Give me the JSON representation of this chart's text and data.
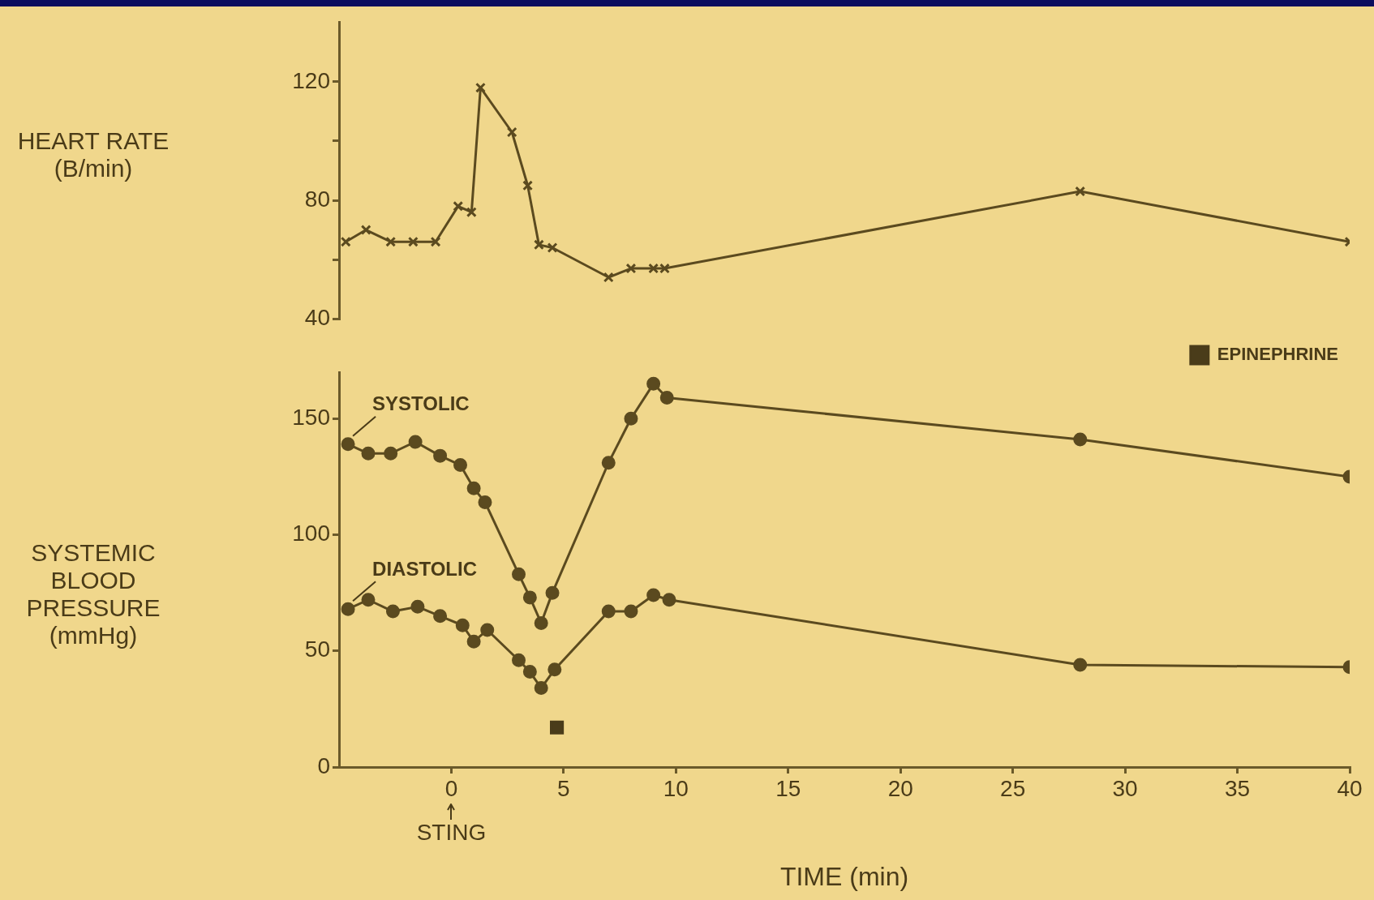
{
  "chart_data": [
    {
      "type": "line",
      "ylabel": "HEART RATE (B/min)",
      "xlim": [
        -5,
        40
      ],
      "tick_labels": "y",
      "ylim": [
        40,
        140
      ],
      "yticks": [
        40,
        {
          "value": 60,
          "label": null
        },
        80,
        {
          "value": 100,
          "label": null
        },
        120
      ],
      "grid": false,
      "line_style": "solid",
      "series": [
        {
          "color": "#5b4a1f",
          "marker": "cross",
          "x": [
            -4.7,
            -3.8,
            -2.7,
            -1.7,
            -0.7,
            0.3,
            0.9,
            1.3,
            2.7,
            3.4,
            3.9,
            4.5,
            7.0,
            8.0,
            9.0,
            9.5,
            28,
            40
          ],
          "values": [
            66,
            70,
            66,
            66,
            66,
            78,
            76,
            118,
            103,
            85,
            65,
            64,
            54,
            57,
            57,
            57,
            83,
            66
          ]
        }
      ]
    },
    {
      "type": "line",
      "ylabel": "SYSTEMIC BLOOD PRESSURE (mmHg)",
      "xlabel": "TIME (min)",
      "xlim": [
        -5,
        40
      ],
      "xticks": [
        0,
        5,
        10,
        15,
        20,
        25,
        30,
        35,
        40
      ],
      "ylim": [
        0,
        170
      ],
      "yticks": [
        0,
        50,
        100,
        150
      ],
      "grid": false,
      "legend": "top right",
      "line_style": "solid",
      "annotations": [
        "STING"
      ],
      "series": [
        {
          "name": "SYSTOLIC",
          "color": "#5b4a1f",
          "marker": "circle",
          "x": [
            -4.6,
            -3.7,
            -2.7,
            -1.6,
            -0.5,
            0.4,
            1.0,
            1.5,
            3.0,
            3.5,
            4.0,
            4.5,
            7.0,
            8.0,
            9.0,
            9.6,
            28,
            40
          ],
          "values": [
            139,
            135,
            135,
            140,
            134,
            130,
            120,
            114,
            83,
            73,
            62,
            75,
            131,
            150,
            165,
            159,
            141,
            125
          ]
        },
        {
          "name": "DIASTOLIC",
          "color": "#5b4a1f",
          "marker": "circle",
          "x": [
            -4.6,
            -3.7,
            -2.6,
            -1.5,
            -0.5,
            0.5,
            1.0,
            1.6,
            3.0,
            3.5,
            4.0,
            4.6,
            7.0,
            8.0,
            9.0,
            9.7,
            28,
            40
          ],
          "values": [
            68,
            72,
            67,
            69,
            65,
            61,
            54,
            59,
            46,
            41,
            34,
            42,
            67,
            67,
            74,
            72,
            44,
            43
          ]
        },
        {
          "type": "scatter",
          "name": "EPINEPHRINE",
          "color": "#4a3c1a",
          "marker": "square",
          "x": [
            4.7
          ],
          "values": [
            17
          ]
        }
      ]
    }
  ]
}
